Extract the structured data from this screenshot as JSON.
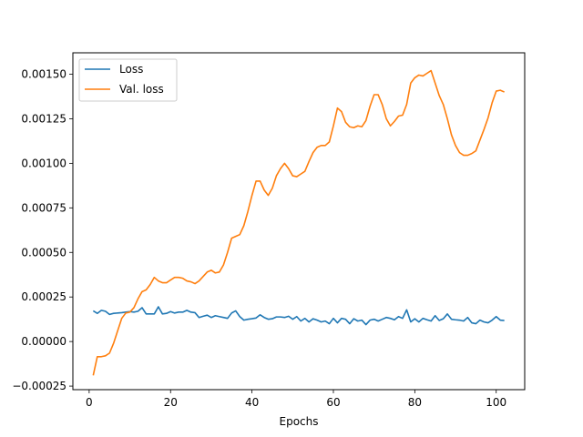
{
  "chart_data": {
    "type": "line",
    "title": "",
    "xlabel": "Epochs",
    "ylabel": "",
    "xlim": [
      -4,
      107
    ],
    "ylim": [
      -0.00027,
      0.00162
    ],
    "x_ticks": [
      0,
      20,
      40,
      60,
      80,
      100
    ],
    "x_tick_labels": [
      "0",
      "20",
      "40",
      "60",
      "80",
      "100"
    ],
    "y_ticks": [
      -0.00025,
      0,
      0.00025,
      0.0005,
      0.00075,
      0.001,
      0.00125,
      0.0015
    ],
    "y_tick_labels": [
      "−0.00025",
      "0.00000",
      "0.00025",
      "0.00050",
      "0.00075",
      "0.00100",
      "0.00125",
      "0.00150"
    ],
    "grid": false,
    "legend_position": "top-left",
    "x": [
      1,
      2,
      3,
      4,
      5,
      6,
      7,
      8,
      9,
      10,
      11,
      12,
      13,
      14,
      15,
      16,
      17,
      18,
      19,
      20,
      21,
      22,
      23,
      24,
      25,
      26,
      27,
      28,
      29,
      30,
      31,
      32,
      33,
      34,
      35,
      36,
      37,
      38,
      39,
      40,
      41,
      42,
      43,
      44,
      45,
      46,
      47,
      48,
      49,
      50,
      51,
      52,
      53,
      54,
      55,
      56,
      57,
      58,
      59,
      60,
      61,
      62,
      63,
      64,
      65,
      66,
      67,
      68,
      69,
      70,
      71,
      72,
      73,
      74,
      75,
      76,
      77,
      78,
      79,
      80,
      81,
      82,
      83,
      84,
      85,
      86,
      87,
      88,
      89,
      90,
      91,
      92,
      93,
      94,
      95,
      96,
      97,
      98,
      99,
      100,
      101,
      102
    ],
    "series": [
      {
        "name": "Loss",
        "color": "#1f77b4",
        "values": [
          0.000172,
          0.000158,
          0.000175,
          0.00017,
          0.000152,
          0.000158,
          0.00016,
          0.000162,
          0.000165,
          0.000168,
          0.000165,
          0.00017,
          0.00019,
          0.000155,
          0.000155,
          0.000155,
          0.000195,
          0.000155,
          0.000158,
          0.000168,
          0.00016,
          0.000165,
          0.000165,
          0.000175,
          0.000165,
          0.000162,
          0.000135,
          0.000142,
          0.000148,
          0.000135,
          0.000145,
          0.00014,
          0.000135,
          0.00013,
          0.00016,
          0.000172,
          0.00014,
          0.00012,
          0.000125,
          0.000128,
          0.000132,
          0.00015,
          0.000135,
          0.000125,
          0.000128,
          0.000138,
          0.000138,
          0.000135,
          0.000142,
          0.000125,
          0.00014,
          0.000115,
          0.00013,
          0.00011,
          0.000128,
          0.00012,
          0.00011,
          0.000115,
          0.0001,
          0.00013,
          0.000105,
          0.00013,
          0.000125,
          0.0001,
          0.000128,
          0.000115,
          0.00012,
          9.5e-05,
          0.00012,
          0.000125,
          0.000115,
          0.000125,
          0.000135,
          0.00013,
          0.000122,
          0.00014,
          0.00013,
          0.000178,
          0.00011,
          0.000128,
          0.00011,
          0.00013,
          0.000122,
          0.000115,
          0.000145,
          0.000118,
          0.000128,
          0.000155,
          0.000125,
          0.000122,
          0.00012,
          0.000115,
          0.000135,
          0.000105,
          0.0001,
          0.00012,
          0.00011,
          0.000105,
          0.00012,
          0.00014,
          0.00012,
          0.000118
        ]
      },
      {
        "name": "Val. loss",
        "color": "#ff7f0e",
        "values": [
          -0.00019,
          -8.5e-05,
          -8.5e-05,
          -8e-05,
          -6.5e-05,
          -1e-05,
          6e-05,
          0.00013,
          0.00016,
          0.000165,
          0.00019,
          0.00024,
          0.00028,
          0.00029,
          0.00032,
          0.00036,
          0.00034,
          0.00033,
          0.00033,
          0.000345,
          0.00036,
          0.00036,
          0.000355,
          0.00034,
          0.000335,
          0.000325,
          0.00034,
          0.000365,
          0.00039,
          0.0004,
          0.000385,
          0.00039,
          0.00043,
          0.0005,
          0.00058,
          0.00059,
          0.0006,
          0.00065,
          0.00073,
          0.00082,
          0.0009,
          0.0009,
          0.00085,
          0.00082,
          0.00086,
          0.00093,
          0.00097,
          0.001,
          0.00097,
          0.00093,
          0.000925,
          0.00094,
          0.000955,
          0.00101,
          0.00106,
          0.00109,
          0.0011,
          0.0011,
          0.00112,
          0.00121,
          0.00131,
          0.00129,
          0.00123,
          0.001205,
          0.0012,
          0.00121,
          0.001205,
          0.00124,
          0.00132,
          0.001385,
          0.001385,
          0.00133,
          0.00125,
          0.00121,
          0.001235,
          0.001265,
          0.00127,
          0.00133,
          0.00145,
          0.00148,
          0.001495,
          0.00149,
          0.001505,
          0.00152,
          0.00145,
          0.00138,
          0.00133,
          0.00125,
          0.00116,
          0.0011,
          0.00106,
          0.001045,
          0.001045,
          0.001055,
          0.00107,
          0.00113,
          0.00119,
          0.001255,
          0.00134,
          0.001405,
          0.00141,
          0.0014
        ]
      }
    ]
  }
}
